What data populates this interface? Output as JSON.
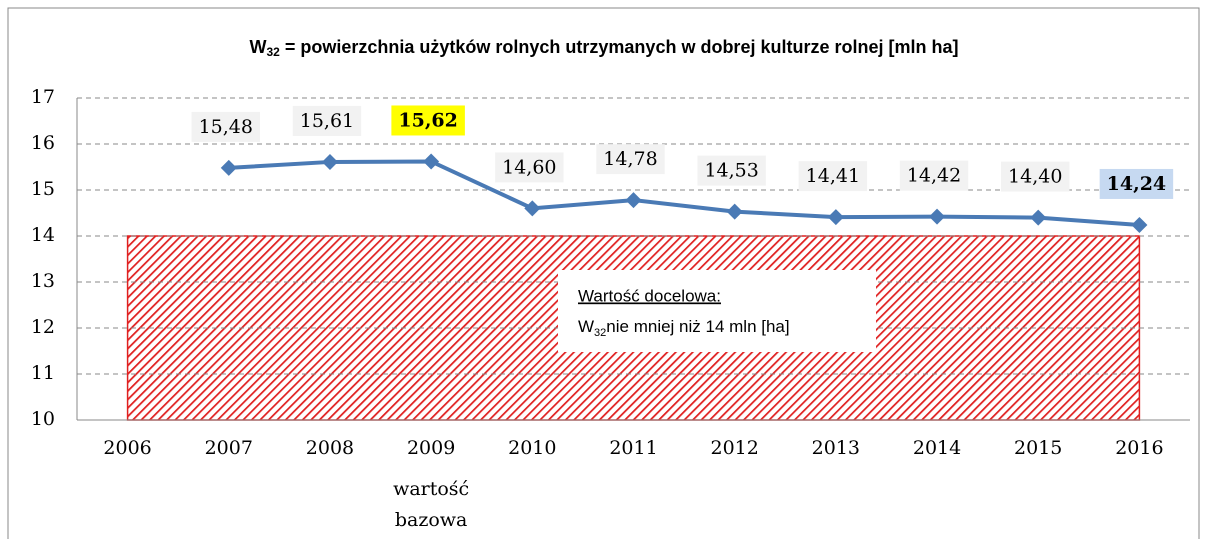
{
  "chart_data": {
    "type": "line",
    "title_parts": [
      "W",
      "32",
      " = powierzchnia użytków rolnych utrzymanych w dobrej kulturze rolnej [mln ha]"
    ],
    "categories": [
      "2006",
      "2007",
      "2008",
      "2009",
      "2010",
      "2011",
      "2012",
      "2013",
      "2014",
      "2015",
      "2016"
    ],
    "values": [
      null,
      15.48,
      15.61,
      15.62,
      14.6,
      14.78,
      14.53,
      14.41,
      14.42,
      14.4,
      14.24
    ],
    "value_labels": [
      null,
      "15,48",
      "15,61",
      "15,62",
      "14,60",
      "14,78",
      "14,53",
      "14,41",
      "14,42",
      "14,40",
      "14,24"
    ],
    "color": "#4a7ab5",
    "ylim": [
      10,
      17
    ],
    "yticks": [
      10,
      11,
      12,
      13,
      14,
      15,
      16,
      17
    ],
    "grid": true,
    "highlights": [
      {
        "category": "2009",
        "color": "#ffff00"
      },
      {
        "category": "2016",
        "color": "#c6d9f1"
      }
    ],
    "base_note": {
      "category": "2009",
      "lines": [
        "wartość",
        "bazowa"
      ]
    },
    "target": {
      "value": 14,
      "color": "#e02020",
      "heading": "Wartość docelowa:",
      "text_parts": [
        "W",
        "32",
        "nie mniej niż 14 mln [ha]"
      ]
    }
  }
}
